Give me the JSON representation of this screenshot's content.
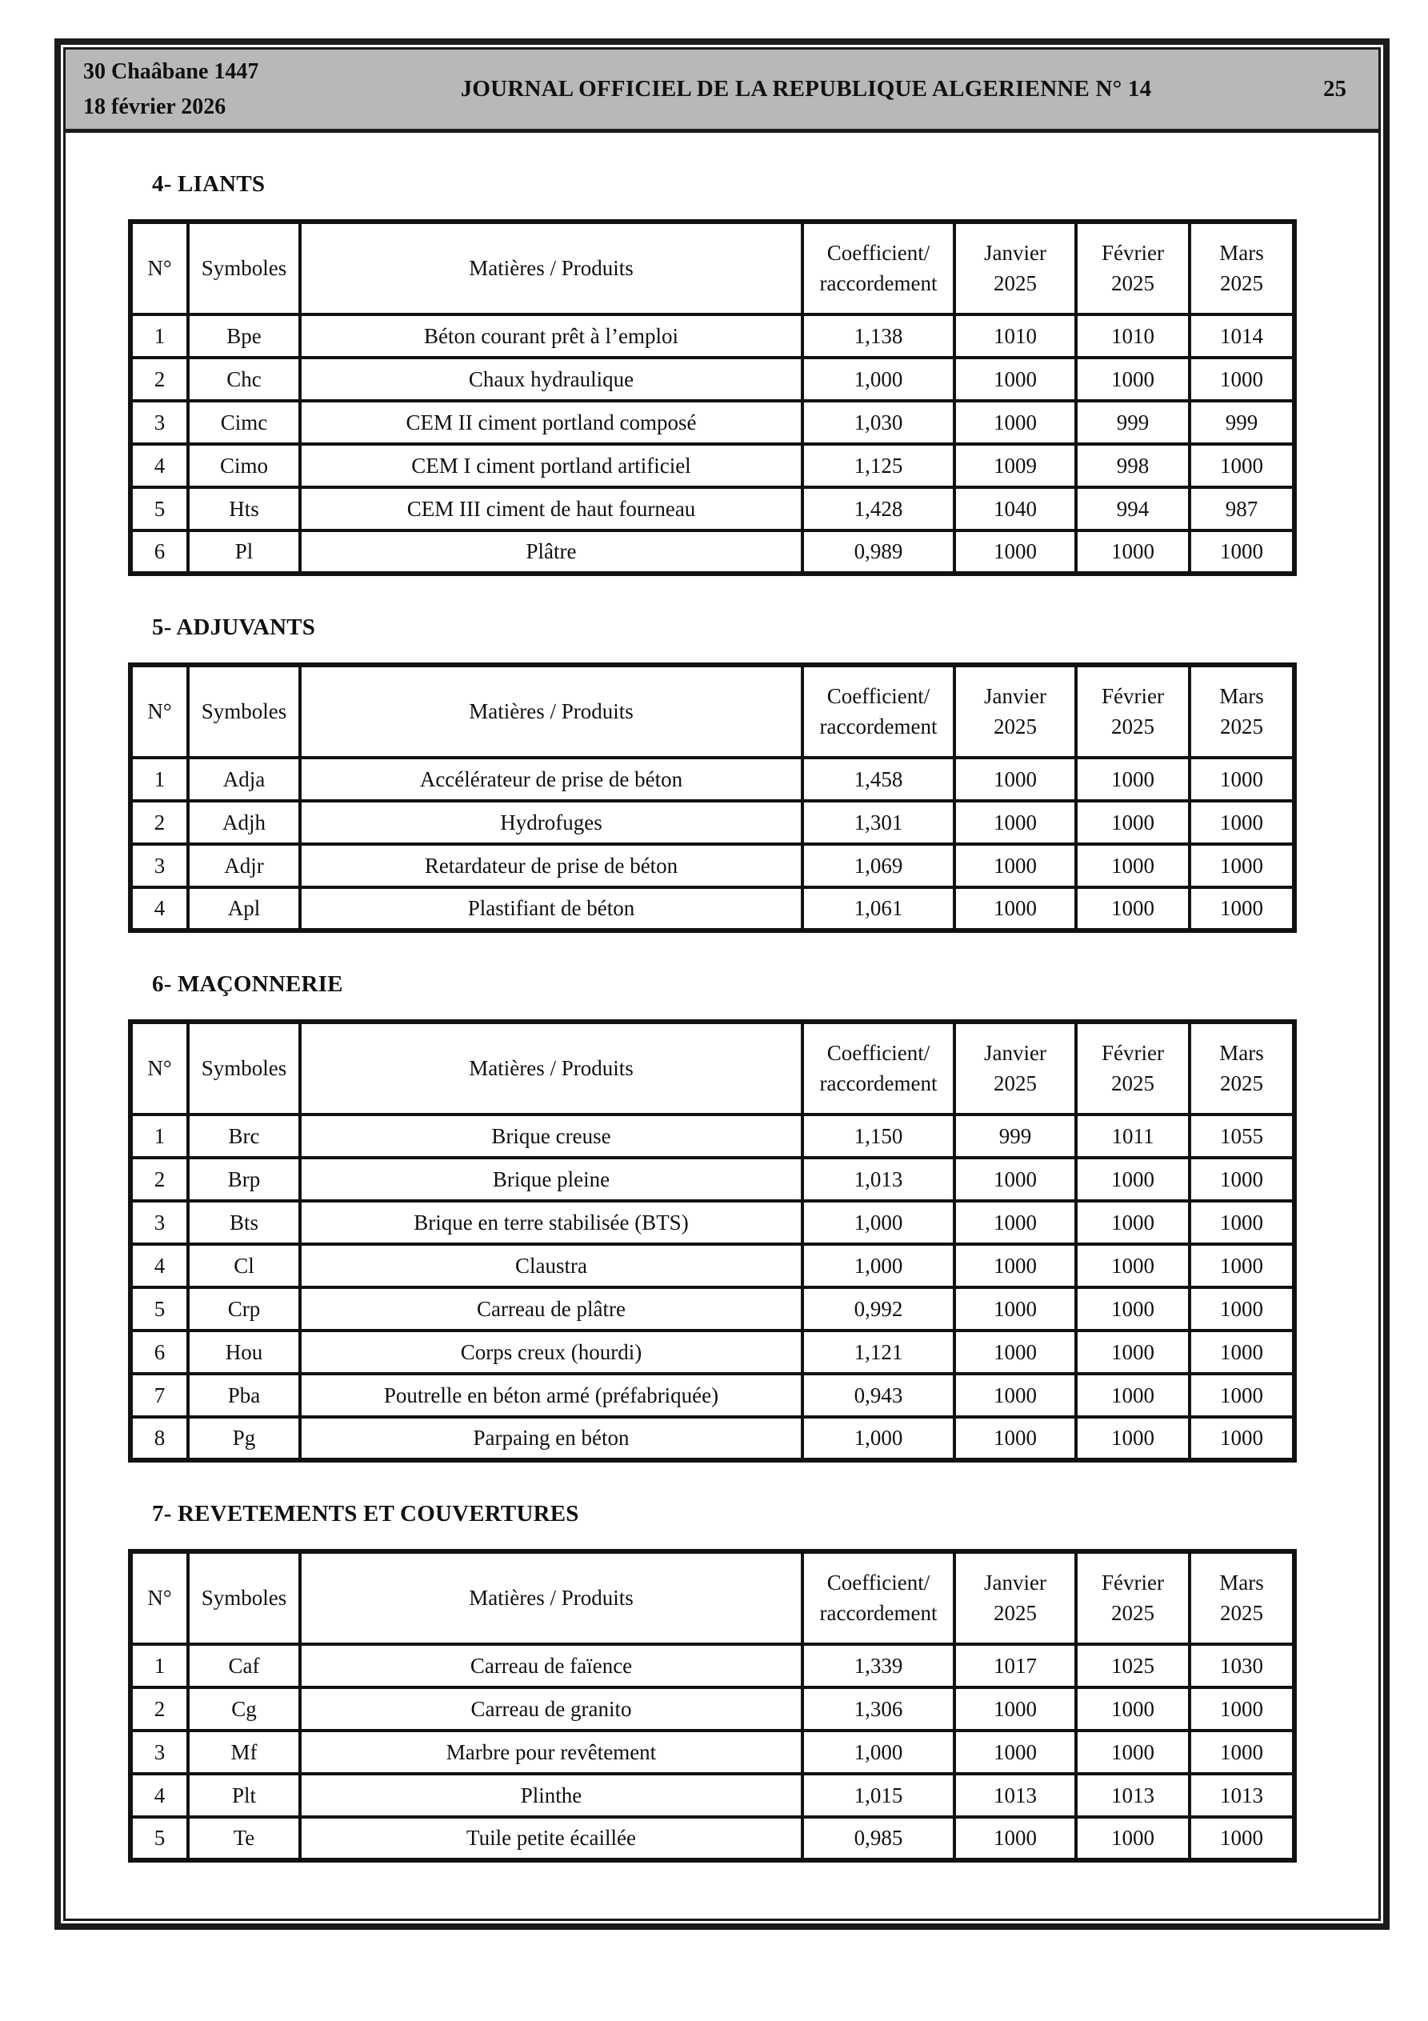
{
  "masthead": {
    "date_line1": "30 Chaâbane 1447",
    "date_line2": "18 février 2026",
    "title": "JOURNAL OFFICIEL DE LA REPUBLIQUE ALGERIENNE N° 14",
    "page_number": "25"
  },
  "colors": {
    "masthead_bg": "#b8b8b8",
    "border": "#121212",
    "text": "#111111"
  },
  "columns": [
    "N°",
    "Symboles",
    "Matières / Produits",
    "Coefficient/\nraccordement",
    "Janvier\n2025",
    "Février\n2025",
    "Mars\n2025"
  ],
  "sections": [
    {
      "title": "4- LIANTS",
      "rows": [
        {
          "num": "1",
          "symbole": "Bpe",
          "produit": "Béton courant prêt à l’emploi",
          "coefficient": "1,138",
          "janvier": "1010",
          "fevrier": "1010",
          "mars": "1014"
        },
        {
          "num": "2",
          "symbole": "Chc",
          "produit": "Chaux hydraulique",
          "coefficient": "1,000",
          "janvier": "1000",
          "fevrier": "1000",
          "mars": "1000"
        },
        {
          "num": "3",
          "symbole": "Cimc",
          "produit": "CEM II ciment portland composé",
          "coefficient": "1,030",
          "janvier": "1000",
          "fevrier": "999",
          "mars": "999"
        },
        {
          "num": "4",
          "symbole": "Cimo",
          "produit": "CEM I ciment portland artificiel",
          "coefficient": "1,125",
          "janvier": "1009",
          "fevrier": "998",
          "mars": "1000"
        },
        {
          "num": "5",
          "symbole": "Hts",
          "produit": "CEM III ciment de haut fourneau",
          "coefficient": "1,428",
          "janvier": "1040",
          "fevrier": "994",
          "mars": "987"
        },
        {
          "num": "6",
          "symbole": "Pl",
          "produit": "Plâtre",
          "coefficient": "0,989",
          "janvier": "1000",
          "fevrier": "1000",
          "mars": "1000"
        }
      ]
    },
    {
      "title": "5- ADJUVANTS",
      "rows": [
        {
          "num": "1",
          "symbole": "Adja",
          "produit": "Accélérateur de prise de béton",
          "coefficient": "1,458",
          "janvier": "1000",
          "fevrier": "1000",
          "mars": "1000"
        },
        {
          "num": "2",
          "symbole": "Adjh",
          "produit": "Hydrofuges",
          "coefficient": "1,301",
          "janvier": "1000",
          "fevrier": "1000",
          "mars": "1000"
        },
        {
          "num": "3",
          "symbole": "Adjr",
          "produit": "Retardateur de prise de béton",
          "coefficient": "1,069",
          "janvier": "1000",
          "fevrier": "1000",
          "mars": "1000"
        },
        {
          "num": "4",
          "symbole": "Apl",
          "produit": "Plastifiant de béton",
          "coefficient": "1,061",
          "janvier": "1000",
          "fevrier": "1000",
          "mars": "1000"
        }
      ]
    },
    {
      "title": "6- MAÇONNERIE",
      "rows": [
        {
          "num": "1",
          "symbole": "Brc",
          "produit": "Brique creuse",
          "coefficient": "1,150",
          "janvier": "999",
          "fevrier": "1011",
          "mars": "1055"
        },
        {
          "num": "2",
          "symbole": "Brp",
          "produit": "Brique pleine",
          "coefficient": "1,013",
          "janvier": "1000",
          "fevrier": "1000",
          "mars": "1000"
        },
        {
          "num": "3",
          "symbole": "Bts",
          "produit": "Brique en terre stabilisée (BTS)",
          "coefficient": "1,000",
          "janvier": "1000",
          "fevrier": "1000",
          "mars": "1000"
        },
        {
          "num": "4",
          "symbole": "Cl",
          "produit": "Claustra",
          "coefficient": "1,000",
          "janvier": "1000",
          "fevrier": "1000",
          "mars": "1000"
        },
        {
          "num": "5",
          "symbole": "Crp",
          "produit": "Carreau de plâtre",
          "coefficient": "0,992",
          "janvier": "1000",
          "fevrier": "1000",
          "mars": "1000"
        },
        {
          "num": "6",
          "symbole": "Hou",
          "produit": "Corps creux (hourdi)",
          "coefficient": "1,121",
          "janvier": "1000",
          "fevrier": "1000",
          "mars": "1000"
        },
        {
          "num": "7",
          "symbole": "Pba",
          "produit": "Poutrelle en béton armé (préfabriquée)",
          "coefficient": "0,943",
          "janvier": "1000",
          "fevrier": "1000",
          "mars": "1000"
        },
        {
          "num": "8",
          "symbole": "Pg",
          "produit": "Parpaing en béton",
          "coefficient": "1,000",
          "janvier": "1000",
          "fevrier": "1000",
          "mars": "1000"
        }
      ]
    },
    {
      "title": "7- REVETEMENTS ET COUVERTURES",
      "rows": [
        {
          "num": "1",
          "symbole": "Caf",
          "produit": "Carreau de faïence",
          "coefficient": "1,339",
          "janvier": "1017",
          "fevrier": "1025",
          "mars": "1030"
        },
        {
          "num": "2",
          "symbole": "Cg",
          "produit": "Carreau de granito",
          "coefficient": "1,306",
          "janvier": "1000",
          "fevrier": "1000",
          "mars": "1000"
        },
        {
          "num": "3",
          "symbole": "Mf",
          "produit": "Marbre pour revêtement",
          "coefficient": "1,000",
          "janvier": "1000",
          "fevrier": "1000",
          "mars": "1000"
        },
        {
          "num": "4",
          "symbole": "Plt",
          "produit": "Plinthe",
          "coefficient": "1,015",
          "janvier": "1013",
          "fevrier": "1013",
          "mars": "1013"
        },
        {
          "num": "5",
          "symbole": "Te",
          "produit": "Tuile petite écaillée",
          "coefficient": "0,985",
          "janvier": "1000",
          "fevrier": "1000",
          "mars": "1000"
        }
      ]
    }
  ]
}
